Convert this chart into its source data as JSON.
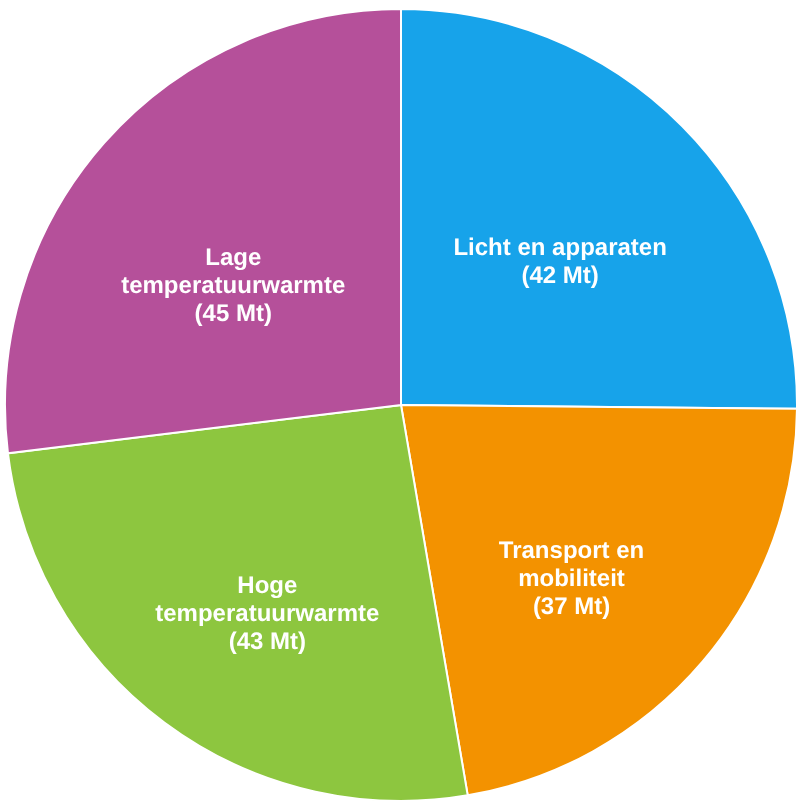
{
  "chart_data": {
    "type": "pie",
    "categories": [
      "Licht en apparaten",
      "Transport en mobiliteit",
      "Hoge temperatuurwarmte",
      "Lage temperatuurwarmte"
    ],
    "values": [
      42,
      37,
      43,
      45
    ],
    "colors": [
      "#17a3ea",
      "#f39200",
      "#8dc63f",
      "#b5509a"
    ],
    "value_labels": [
      "(42 Mt)",
      "(37 Mt)",
      "(43 Mt)",
      "(45 Mt)"
    ],
    "legend": false
  }
}
